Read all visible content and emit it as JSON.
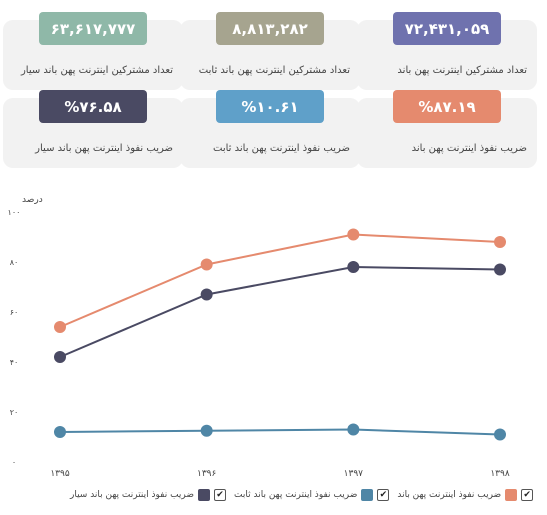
{
  "cards": [
    {
      "value": "۷۲,۴۳۱,۰۵۹",
      "label": "تعداد مشترکین اینترنت پهن باند",
      "color": "#6f72ae"
    },
    {
      "value": "۸,۸۱۳,۲۸۲",
      "label": "تعداد مشترکین اینترنت پهن باند ثابت",
      "color": "#a6a48f"
    },
    {
      "value": "۶۳,۶۱۷,۷۷۷",
      "label": "تعداد مشترکین اینترنت پهن باند سیار",
      "color": "#8fb8a8"
    },
    {
      "value": "%۸۷.۱۹",
      "label": "ضریب نفوذ اینترنت پهن باند",
      "color": "#e58a6e"
    },
    {
      "value": "%۱۰.۶۱",
      "label": "ضریب نفوذ اینترنت پهن باند ثابت",
      "color": "#5fa0c9"
    },
    {
      "value": "%۷۶.۵۸",
      "label": "ضریب نفوذ اینترنت پهن باند سیار",
      "color": "#4a4a63"
    }
  ],
  "chart_data": {
    "type": "line",
    "ylabel": "درصد",
    "ylim": [
      0,
      100
    ],
    "yticks": [
      0,
      20,
      40,
      60,
      80,
      100
    ],
    "ytick_labels": [
      "۰",
      "۲۰",
      "۴۰",
      "۶۰",
      "۸۰",
      "۱۰۰"
    ],
    "categories": [
      "۱۳۹۵",
      "۱۳۹۶",
      "۱۳۹۷",
      "۱۳۹۸"
    ],
    "series": [
      {
        "name": "ضریب نفوذ اینترنت پهن باند",
        "color": "#e58a6e",
        "values": [
          54,
          79,
          91,
          88
        ]
      },
      {
        "name": "ضریب نفوذ اینترنت پهن باند ثابت",
        "color": "#4f86a6",
        "values": [
          12,
          12.5,
          13,
          11
        ]
      },
      {
        "name": "ضریب نفوذ اینترنت پهن باند سیار",
        "color": "#4a4a63",
        "values": [
          42,
          67,
          78,
          77
        ]
      }
    ],
    "legend_position": "bottom",
    "grid": false
  },
  "legend": [
    {
      "label": "ضریب نفوذ اینترنت پهن باند",
      "color": "#e58a6e",
      "check": "✔"
    },
    {
      "label": "ضریب نفوذ اینترنت پهن باند ثابت",
      "color": "#4f86a6",
      "check": "✔"
    },
    {
      "label": "ضریب نفوذ اینترنت پهن باند سیار",
      "color": "#4a4a63",
      "check": "✔"
    }
  ]
}
